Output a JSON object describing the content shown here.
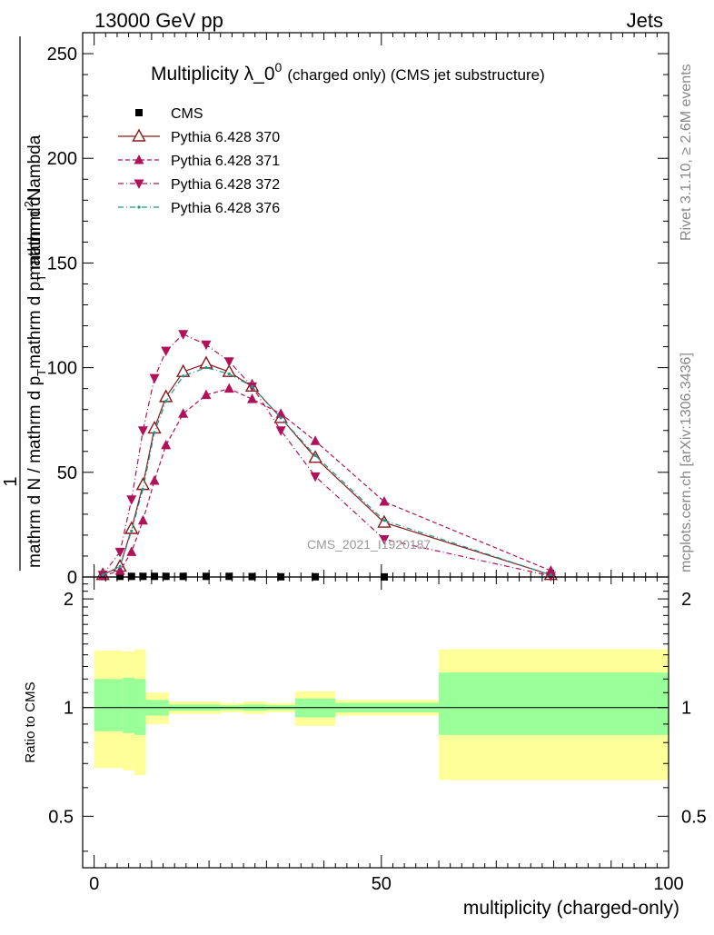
{
  "header": {
    "energy_label": "13000 GeV pp",
    "category_label": "Jets"
  },
  "side_labels": {
    "rivet": "Rivet 3.1.10, ≥ 2.6M events",
    "mcplots": "mcplots.cern.ch [arXiv:1306.3436]"
  },
  "watermark": "CMS_2021_I1920187",
  "chart_data": [
    {
      "type": "line",
      "title": "Multiplicity λ_0",
      "title_superscript": "0",
      "subtitle": "(charged only) (CMS jet substructure)",
      "ylabel_numerator": "mathrm d",
      "ylabel_numerator_super": "2",
      "ylabel_numerator_tail": "N",
      "ylabel_denominator": "mathrm d p",
      "ylabel_denominator_sub": "T",
      "ylabel_denominator_tail": " mathrm d lambda",
      "ylabel_prefix_num": "1",
      "ylabel_prefix_den": "mathrm d N / mathrm d p",
      "ylabel_prefix_den_sub": "T",
      "ylim": [
        0,
        260
      ],
      "yticks": [
        0,
        50,
        100,
        150,
        200,
        250
      ],
      "xlim": [
        -2,
        100
      ],
      "grid": false,
      "legend_position": "top-left",
      "series": [
        {
          "name": "CMS",
          "marker": "square",
          "color": "#000000",
          "x": [
            1.5,
            4.5,
            6.5,
            8.5,
            10.5,
            12.5,
            15.5,
            19.5,
            23.5,
            27.5,
            32.5,
            38.5,
            50.5
          ],
          "y": [
            0.2,
            0.3,
            0.3,
            0.3,
            0.3,
            0.3,
            0.3,
            0.3,
            0.3,
            0.2,
            0.1,
            0.1,
            0.05
          ]
        },
        {
          "name": "Pythia 6.428 370",
          "marker": "triangle-up-open",
          "dash": "solid",
          "color": "#8b1a1a",
          "x": [
            1.5,
            4.5,
            6.5,
            8.5,
            10.5,
            12.5,
            15.5,
            19.5,
            23.5,
            27.5,
            32.5,
            38.5,
            50.5,
            79.5
          ],
          "y": [
            1,
            5,
            23,
            44,
            71,
            86,
            98,
            102,
            98,
            91,
            76,
            57,
            26,
            1
          ]
        },
        {
          "name": "Pythia 6.428 371",
          "marker": "triangle-up",
          "dash": "dash",
          "color": "#b0125a",
          "x": [
            1.5,
            4.5,
            6.5,
            8.5,
            10.5,
            12.5,
            15.5,
            19.5,
            23.5,
            27.5,
            32.5,
            38.5,
            50.5,
            79.5
          ],
          "y": [
            0.5,
            3,
            12,
            27,
            46,
            63,
            78,
            87,
            90,
            85,
            78,
            65,
            36,
            3
          ]
        },
        {
          "name": "Pythia 6.428 372",
          "marker": "triangle-down",
          "dash": "dashdot",
          "color": "#b0125a",
          "x": [
            1.5,
            4.5,
            6.5,
            8.5,
            10.5,
            12.5,
            15.5,
            19.5,
            23.5,
            27.5,
            32.5,
            38.5,
            50.5,
            79.5
          ],
          "y": [
            1,
            12,
            37,
            70,
            95,
            108,
            116,
            111,
            103,
            91,
            70,
            48,
            18,
            0.5
          ]
        },
        {
          "name": "Pythia 6.428 376",
          "marker": "dot",
          "dash": "dashdot",
          "color": "#1a9a8a",
          "x": [
            1.5,
            4.5,
            6.5,
            8.5,
            10.5,
            12.5,
            15.5,
            19.5,
            23.5,
            27.5,
            32.5,
            38.5,
            50.5,
            79.5
          ],
          "y": [
            1,
            5,
            22,
            42,
            69,
            84,
            96,
            100,
            97,
            91,
            76,
            58,
            27,
            1
          ]
        }
      ]
    },
    {
      "type": "area",
      "ylabel": "Ratio to CMS",
      "xlabel": "multiplicity (charged-only)",
      "ylim": [
        0.36,
        2.3
      ],
      "yticks": [
        0.5,
        1,
        2
      ],
      "xlim": [
        -2,
        100
      ],
      "xticks": [
        0,
        50,
        100
      ],
      "bands": [
        {
          "x0": 0,
          "x1": 3,
          "yellow": [
            0.68,
            1.44
          ],
          "green": [
            0.86,
            1.2
          ]
        },
        {
          "x0": 3,
          "x1": 5,
          "yellow": [
            0.68,
            1.44
          ],
          "green": [
            0.86,
            1.2
          ]
        },
        {
          "x0": 5,
          "x1": 7,
          "yellow": [
            0.67,
            1.43
          ],
          "green": [
            0.85,
            1.21
          ]
        },
        {
          "x0": 7,
          "x1": 9,
          "yellow": [
            0.65,
            1.45
          ],
          "green": [
            0.84,
            1.2
          ]
        },
        {
          "x0": 9,
          "x1": 13,
          "yellow": [
            0.9,
            1.1
          ],
          "green": [
            0.95,
            1.05
          ]
        },
        {
          "x0": 13,
          "x1": 18,
          "yellow": [
            0.96,
            1.04
          ],
          "green": [
            0.98,
            1.02
          ]
        },
        {
          "x0": 18,
          "x1": 22,
          "yellow": [
            0.96,
            1.04
          ],
          "green": [
            0.98,
            1.02
          ]
        },
        {
          "x0": 22,
          "x1": 26,
          "yellow": [
            0.97,
            1.03
          ],
          "green": [
            0.985,
            1.015
          ]
        },
        {
          "x0": 26,
          "x1": 30,
          "yellow": [
            0.96,
            1.04
          ],
          "green": [
            0.98,
            1.02
          ]
        },
        {
          "x0": 30,
          "x1": 35,
          "yellow": [
            0.97,
            1.03
          ],
          "green": [
            0.985,
            1.015
          ]
        },
        {
          "x0": 35,
          "x1": 42,
          "yellow": [
            0.89,
            1.11
          ],
          "green": [
            0.94,
            1.06
          ]
        },
        {
          "x0": 42,
          "x1": 60,
          "yellow": [
            0.95,
            1.05
          ],
          "green": [
            0.97,
            1.03
          ]
        },
        {
          "x0": 60,
          "x1": 100,
          "yellow": [
            0.63,
            1.45
          ],
          "green": [
            0.84,
            1.25
          ]
        }
      ],
      "reference_line": 1,
      "colors": {
        "yellow": "#ffff99",
        "green": "#99ff99"
      }
    }
  ]
}
